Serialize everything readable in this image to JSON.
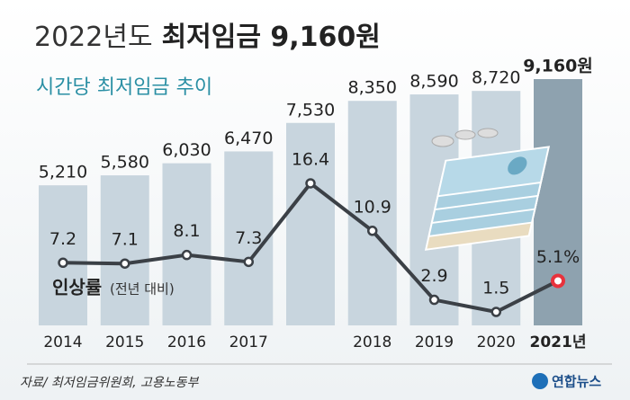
{
  "chart_data": {
    "type": "bar_line",
    "title_light": "2022년도",
    "title_bold": "최저임금 9,160원",
    "subtitle": "시간당 최저임금 추이",
    "categories": [
      "2014",
      "2015",
      "2016",
      "2017",
      null,
      "2018",
      "2019",
      "2020",
      "2021년"
    ],
    "series": [
      {
        "name": "시간당 최저임금",
        "type": "bar",
        "color": "#c8d5de",
        "highlight_color": "#8ea2af",
        "values": [
          5210,
          5580,
          6030,
          6470,
          7530,
          8350,
          8590,
          8720,
          9160
        ],
        "value_labels": [
          "5,210",
          "5,580",
          "6,030",
          "6,470",
          "7,530",
          "8,350",
          "8,590",
          "8,720",
          "9,160원"
        ]
      },
      {
        "name": "인상률",
        "name_note": "(전년 대비)",
        "type": "line",
        "color": "#3b4046",
        "highlight_color": "#e8323c",
        "values": [
          7.2,
          7.1,
          8.1,
          7.3,
          16.4,
          10.9,
          2.9,
          1.5,
          5.1
        ],
        "value_labels": [
          "7.2",
          "7.1",
          "8.1",
          "7.3",
          "16.4",
          "10.9",
          "2.9",
          "1.5",
          "5.1%"
        ]
      }
    ],
    "source": "자료/ 최저임금위원회, 고용노동부",
    "logo": "연합뉴스"
  }
}
